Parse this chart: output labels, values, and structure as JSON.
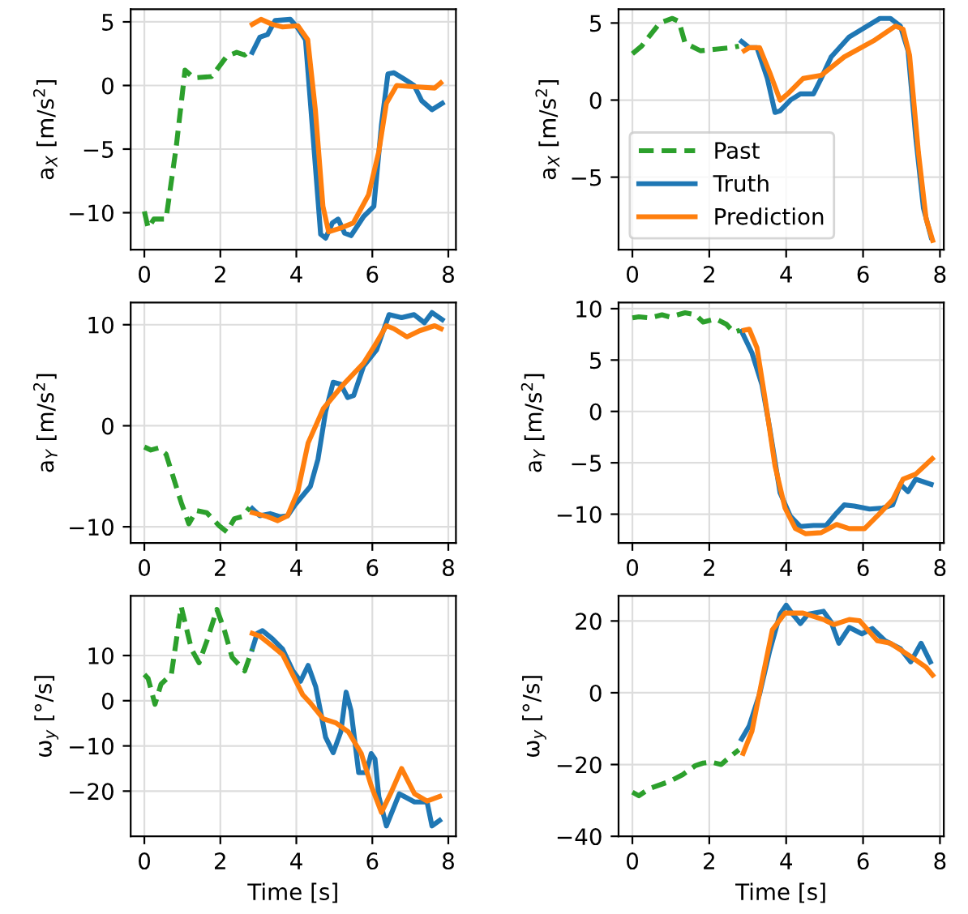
{
  "chart_data": [
    {
      "type": "line",
      "ylabel": "a$_{X}$ [m/s$^{2}$]",
      "xlim": [
        -0.36,
        8.2
      ],
      "xticks": [
        0,
        2,
        4,
        6,
        8
      ],
      "ylim": [
        -12.9,
        6.0
      ],
      "yticks": [
        -10,
        -5,
        0,
        5
      ],
      "grid": true,
      "series": [
        {
          "color": "#2ca02c",
          "line_style": "dashed",
          "x": [
            0,
            0.1,
            0.25,
            0.57,
            0.84,
            1.07,
            1.3,
            1.77,
            2.17,
            2.43,
            2.64,
            2.77
          ],
          "values": [
            -9.9,
            -11.2,
            -10.5,
            -10.5,
            -4.8,
            1.2,
            0.6,
            0.7,
            2.3,
            2.6,
            2.4,
            2.7
          ]
        },
        {
          "color": "#1f77b4",
          "line_style": "solid",
          "x": [
            2.84,
            3.04,
            3.24,
            3.44,
            3.84,
            4.04,
            4.24,
            4.44,
            4.64,
            4.77,
            4.95,
            5.1,
            5.27,
            5.44,
            5.77,
            6.04,
            6.24,
            6.41,
            6.57,
            6.84,
            7.1,
            7.3,
            7.57,
            7.84
          ],
          "values": [
            2.6,
            3.8,
            4.0,
            5.1,
            5.2,
            4.5,
            3.6,
            -4.0,
            -11.7,
            -12.0,
            -10.8,
            -10.5,
            -11.6,
            -11.8,
            -10.3,
            -9.5,
            -3.1,
            0.9,
            1.0,
            0.5,
            0,
            -1.2,
            -1.9,
            -1.4
          ]
        },
        {
          "color": "#ff7f0e",
          "line_style": "solid",
          "x": [
            2.84,
            3.07,
            3.37,
            3.64,
            4.04,
            4.3,
            4.5,
            4.7,
            4.85,
            5.17,
            5.5,
            5.9,
            6.17,
            6.37,
            6.64,
            7.1,
            7.64,
            7.8
          ],
          "values": [
            4.8,
            5.2,
            4.8,
            4.6,
            4.7,
            3.6,
            -1.9,
            -9.5,
            -11.5,
            -11.2,
            -10.8,
            -8.6,
            -5.2,
            -1.4,
            0,
            -0.1,
            -0.2,
            0.2
          ]
        }
      ]
    },
    {
      "type": "line",
      "ylabel": "a$_{X}$ [m/s$^{2}$]",
      "xlim": [
        -0.36,
        8.1
      ],
      "xticks": [
        0,
        2,
        4,
        6,
        8
      ],
      "ylim": [
        -9.7,
        5.9
      ],
      "yticks": [
        -5,
        0,
        5
      ],
      "grid": true,
      "legend": "lower left",
      "series": [
        {
          "name": "Past",
          "color": "#2ca02c",
          "line_style": "dashed",
          "x": [
            0,
            0.24,
            0.71,
            1.04,
            1.21,
            1.37,
            1.77,
            2.17,
            2.57,
            2.77
          ],
          "values": [
            3.0,
            3.5,
            5.0,
            5.3,
            5.1,
            3.7,
            3.2,
            3.3,
            3.4,
            3.5
          ]
        },
        {
          "name": "Truth",
          "color": "#1f77b4",
          "line_style": "solid",
          "x": [
            2.84,
            3.04,
            3.24,
            3.51,
            3.71,
            3.84,
            4.11,
            4.37,
            4.71,
            4.91,
            5.17,
            5.64,
            6.11,
            6.44,
            6.71,
            6.97,
            7.17,
            7.37,
            7.57,
            7.77
          ],
          "values": [
            3.8,
            3.4,
            3.4,
            1.4,
            -0.8,
            -0.7,
            0,
            0.4,
            0.4,
            1.4,
            2.8,
            4.1,
            4.8,
            5.3,
            5.3,
            4.8,
            3.2,
            -2.4,
            -7.0,
            -8.9
          ]
        },
        {
          "name": "Prediction",
          "color": "#ff7f0e",
          "line_style": "solid",
          "x": [
            2.91,
            3.04,
            3.31,
            3.57,
            3.84,
            4.04,
            4.44,
            4.91,
            5.51,
            6.31,
            6.84,
            7.04,
            7.21,
            7.44,
            7.64,
            7.81
          ],
          "values": [
            3.2,
            3.4,
            3.4,
            1.8,
            0,
            0.4,
            1.4,
            1.6,
            2.8,
            3.9,
            4.8,
            4.6,
            2.9,
            -3.4,
            -7.7,
            -9.1
          ]
        }
      ]
    },
    {
      "type": "line",
      "ylabel": "a$_{Y}$ [m/s$^{2}$]",
      "xlim": [
        -0.36,
        8.2
      ],
      "xticks": [
        0,
        2,
        4,
        6,
        8
      ],
      "ylim": [
        -11.6,
        12.2
      ],
      "yticks": [
        -10,
        0,
        10
      ],
      "grid": true,
      "series": [
        {
          "color": "#2ca02c",
          "line_style": "dashed",
          "x": [
            0,
            0.17,
            0.37,
            0.57,
            0.97,
            1.17,
            1.37,
            1.64,
            1.97,
            2.17,
            2.37,
            2.57,
            2.77
          ],
          "values": [
            -2.1,
            -2.4,
            -2.2,
            -2.8,
            -7.6,
            -9.7,
            -8.4,
            -8.6,
            -9.9,
            -10.5,
            -9.2,
            -9.0,
            -8.1
          ]
        },
        {
          "color": "#1f77b4",
          "line_style": "solid",
          "x": [
            2.84,
            3.04,
            3.31,
            3.57,
            3.77,
            3.97,
            4.37,
            4.57,
            4.77,
            4.97,
            5.17,
            5.35,
            5.51,
            5.77,
            6.11,
            6.44,
            6.77,
            7.1,
            7.37,
            7.57,
            7.84
          ],
          "values": [
            -8.2,
            -8.9,
            -8.7,
            -9.0,
            -8.9,
            -7.8,
            -6.0,
            -3.3,
            1.4,
            4.3,
            4.1,
            2.8,
            3.0,
            5.9,
            7.5,
            11.0,
            10.7,
            11.0,
            10.2,
            11.2,
            10.5
          ]
        },
        {
          "color": "#ff7f0e",
          "line_style": "solid",
          "x": [
            2.84,
            3.24,
            3.51,
            3.77,
            4.04,
            4.31,
            4.71,
            5.24,
            5.77,
            6.04,
            6.37,
            6.57,
            6.91,
            7.24,
            7.64,
            7.81
          ],
          "values": [
            -8.6,
            -9.0,
            -9.4,
            -8.9,
            -6.5,
            -1.7,
            1.7,
            4.1,
            6.2,
            7.8,
            9.9,
            9.6,
            8.8,
            9.4,
            9.9,
            9.6
          ]
        }
      ]
    },
    {
      "type": "line",
      "ylabel": "a$_{Y}$ [m/s$^{2}$]",
      "xlim": [
        -0.36,
        8.1
      ],
      "xticks": [
        0,
        2,
        4,
        6,
        8
      ],
      "ylim": [
        -12.8,
        10.6
      ],
      "yticks": [
        -10,
        -5,
        0,
        5,
        10
      ],
      "grid": true,
      "series": [
        {
          "color": "#2ca02c",
          "line_style": "dashed",
          "x": [
            0,
            0.17,
            0.44,
            0.77,
            0.97,
            1.37,
            1.64,
            1.84,
            2.17,
            2.44,
            2.64,
            2.8
          ],
          "values": [
            9.1,
            9.2,
            9.1,
            9.4,
            9.2,
            9.6,
            9.4,
            8.7,
            9.0,
            8.5,
            7.7,
            7.9
          ]
        },
        {
          "color": "#1f77b4",
          "line_style": "solid",
          "x": [
            2.84,
            3.11,
            3.37,
            3.57,
            3.84,
            4.11,
            4.37,
            4.71,
            5.04,
            5.31,
            5.51,
            5.77,
            6.17,
            6.51,
            6.77,
            6.97,
            7.17,
            7.37,
            7.77
          ],
          "values": [
            7.8,
            5.7,
            2.6,
            -1.6,
            -7.9,
            -10.2,
            -11.2,
            -11.1,
            -11.1,
            -9.9,
            -9.1,
            -9.2,
            -9.5,
            -9.4,
            -9.1,
            -7.1,
            -7.8,
            -6.6,
            -7.1
          ]
        },
        {
          "color": "#ff7f0e",
          "line_style": "solid",
          "x": [
            2.91,
            3.04,
            3.24,
            3.44,
            3.71,
            3.97,
            4.24,
            4.51,
            4.91,
            5.31,
            5.64,
            6.04,
            6.44,
            6.77,
            7.04,
            7.37,
            7.8
          ],
          "values": [
            7.9,
            8.0,
            6.2,
            1.5,
            -5.3,
            -9.4,
            -11.4,
            -11.9,
            -11.8,
            -11.0,
            -11.4,
            -11.4,
            -9.9,
            -8.6,
            -6.6,
            -6.1,
            -4.6
          ]
        }
      ]
    },
    {
      "type": "line",
      "ylabel": "ω$_{y}$ [°/s]",
      "xlabel": "Time [s]",
      "xlim": [
        -0.36,
        8.2
      ],
      "xticks": [
        0,
        2,
        4,
        6,
        8
      ],
      "ylim": [
        -30,
        23.2
      ],
      "yticks": [
        -20,
        -10,
        0,
        10
      ],
      "grid": true,
      "series": [
        {
          "color": "#2ca02c",
          "line_style": "dashed",
          "x": [
            0,
            0.1,
            0.28,
            0.44,
            0.71,
            0.97,
            1.24,
            1.44,
            1.64,
            1.91,
            2.11,
            2.31,
            2.64,
            2.84
          ],
          "values": [
            5.8,
            4.9,
            -0.8,
            3.7,
            5.8,
            20.8,
            11.4,
            8.4,
            13.1,
            20.2,
            15.5,
            9.6,
            6.6,
            11.4
          ]
        },
        {
          "color": "#1f77b4",
          "line_style": "solid",
          "x": [
            2.84,
            2.97,
            3.11,
            3.37,
            3.64,
            3.91,
            4.11,
            4.31,
            4.51,
            4.77,
            4.97,
            5.17,
            5.31,
            5.44,
            5.64,
            5.84,
            5.97,
            6.07,
            6.17,
            6.37,
            6.71,
            7.11,
            7.44,
            7.57,
            7.77
          ],
          "values": [
            11.4,
            14.9,
            15.5,
            13.7,
            11.4,
            6.6,
            4.3,
            7.8,
            3.1,
            -8.1,
            -11.5,
            -6.9,
            1.9,
            -2.2,
            -15.9,
            -15.9,
            -11.7,
            -12.9,
            -21.2,
            -27.7,
            -20.6,
            -22.4,
            -22.4,
            -27.7,
            -26.5
          ]
        },
        {
          "color": "#ff7f0e",
          "line_style": "solid",
          "x": [
            2.84,
            3.04,
            3.31,
            3.64,
            4.17,
            4.37,
            4.71,
            5.04,
            5.37,
            5.71,
            5.97,
            6.24,
            6.51,
            6.77,
            7.11,
            7.44,
            7.77
          ],
          "values": [
            14.9,
            14.3,
            12.5,
            10.2,
            1.3,
            -0.5,
            -4.0,
            -4.9,
            -6.9,
            -11.7,
            -18.8,
            -24.7,
            -20.0,
            -15.0,
            -20.6,
            -22.2,
            -21.2
          ]
        }
      ]
    },
    {
      "type": "line",
      "ylabel": "ω$_{y}$ [°/s]",
      "xlabel": "Time [s]",
      "xlim": [
        -0.36,
        8.1
      ],
      "xticks": [
        0,
        2,
        4,
        6,
        8
      ],
      "ylim": [
        -40,
        27
      ],
      "yticks": [
        -40,
        -20,
        0,
        20
      ],
      "grid": true,
      "series": [
        {
          "color": "#2ca02c",
          "line_style": "dashed",
          "x": [
            0,
            0.17,
            0.44,
            0.97,
            1.31,
            1.64,
            1.84,
            2.04,
            2.31,
            2.51,
            2.77
          ],
          "values": [
            -27.7,
            -28.7,
            -26.7,
            -24.7,
            -22.8,
            -20.3,
            -19.6,
            -19.3,
            -20,
            -18.1,
            -15.9
          ]
        },
        {
          "color": "#1f77b4",
          "line_style": "solid",
          "x": [
            2.84,
            3.04,
            3.31,
            3.57,
            3.84,
            4.0,
            4.17,
            4.37,
            4.57,
            4.97,
            5.17,
            5.37,
            5.64,
            5.97,
            6.24,
            6.57,
            6.97,
            7.24,
            7.51,
            7.75
          ],
          "values": [
            -12.9,
            -9.2,
            -0.3,
            11.6,
            21.9,
            24.4,
            21.9,
            19.3,
            21.9,
            22.7,
            19.7,
            13.8,
            18.2,
            16.4,
            17.9,
            14.5,
            12.3,
            8.6,
            13.8,
            8.6
          ]
        },
        {
          "color": "#ff7f0e",
          "line_style": "solid",
          "x": [
            2.88,
            3.11,
            3.37,
            3.64,
            3.97,
            4.44,
            4.97,
            5.24,
            5.64,
            5.91,
            6.37,
            6.71,
            7.24,
            7.64,
            7.81
          ],
          "values": [
            -16.9,
            -10.7,
            3.4,
            17.5,
            22.2,
            22.2,
            20.4,
            19.0,
            20.4,
            20.1,
            14.5,
            13.8,
            10.1,
            7.1,
            4.9
          ]
        }
      ]
    }
  ]
}
